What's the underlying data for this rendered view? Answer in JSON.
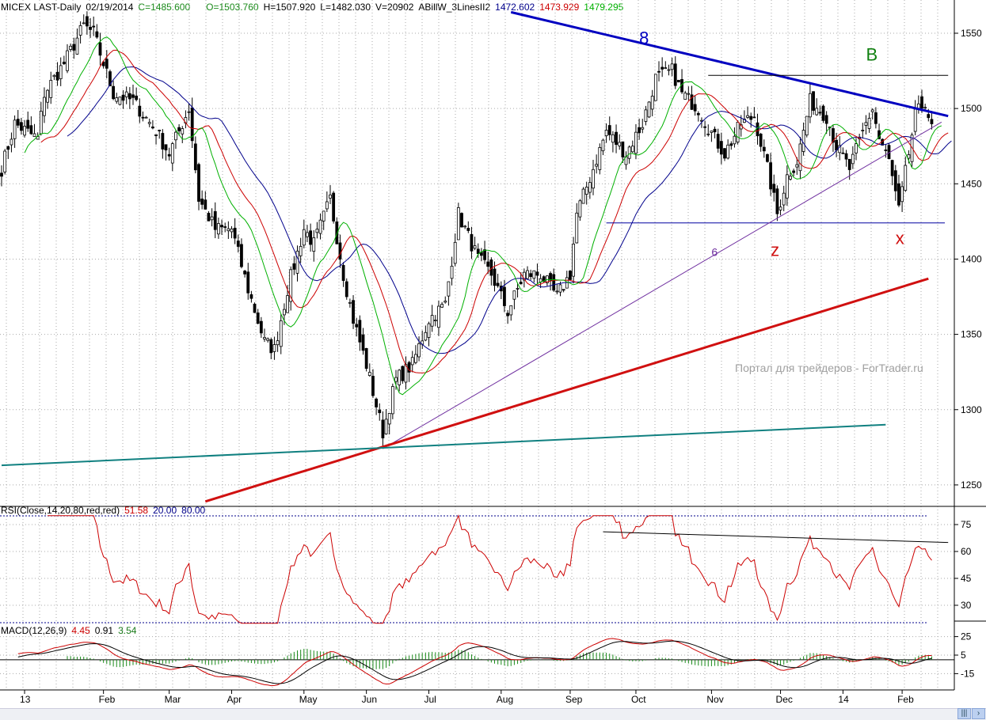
{
  "header": {
    "symbol": "MICEX LAST-Daily",
    "date": "02/19/2014",
    "close": "C=1485.600",
    "open": "O=1503.760",
    "high": "H=1507.920",
    "low": "L=1482.030",
    "volume": "V=20902",
    "indicator": "ABillW_3LinesII2",
    "jaw": "1472.602",
    "teeth": "1473.929",
    "lips": "1479.295"
  },
  "rsi_header": {
    "label": "RSI(Close,14,20,80,red,red)",
    "value": "51.58",
    "low": "20.00",
    "high": "80.00"
  },
  "macd_header": {
    "label": "MACD(12,26,9)",
    "macd": "4.45",
    "signal": "0.91",
    "hist": "3.54"
  },
  "watermark": "Портал для трейдеров - ForTrader.ru",
  "colors": {
    "jaw": "#00008b",
    "teeth": "#cc0000",
    "lips": "#00b000",
    "rsi": "#cc0000",
    "grid": "#999999"
  },
  "chart_data": {
    "type": "candlestick",
    "title": "MICEX LAST-Daily",
    "ylim": [
      1230,
      1570
    ],
    "y_ticks": [
      1250,
      1300,
      1350,
      1400,
      1450,
      1500,
      1550
    ],
    "x_ticks": [
      {
        "label": "13",
        "bar": 7
      },
      {
        "label": "Feb",
        "bar": 31
      },
      {
        "label": "Mar",
        "bar": 51
      },
      {
        "label": "Apr",
        "bar": 70
      },
      {
        "label": "May",
        "bar": 92
      },
      {
        "label": "Jun",
        "bar": 111
      },
      {
        "label": "Jul",
        "bar": 130
      },
      {
        "label": "Aug",
        "bar": 152
      },
      {
        "label": "Sep",
        "bar": 173
      },
      {
        "label": "Oct",
        "bar": 193
      },
      {
        "label": "Nov",
        "bar": 216
      },
      {
        "label": "Dec",
        "bar": 237
      },
      {
        "label": "14",
        "bar": 256
      },
      {
        "label": "Feb",
        "bar": 274
      }
    ],
    "bars": 284,
    "close_keypoints": [
      [
        0,
        1460
      ],
      [
        4,
        1490
      ],
      [
        11,
        1480
      ],
      [
        13,
        1510
      ],
      [
        19,
        1530
      ],
      [
        25,
        1555
      ],
      [
        28,
        1550
      ],
      [
        34,
        1510
      ],
      [
        40,
        1505
      ],
      [
        47,
        1485
      ],
      [
        51,
        1470
      ],
      [
        57,
        1500
      ],
      [
        60,
        1440
      ],
      [
        65,
        1420
      ],
      [
        70,
        1420
      ],
      [
        75,
        1380
      ],
      [
        80,
        1345
      ],
      [
        83,
        1340
      ],
      [
        87,
        1380
      ],
      [
        92,
        1420
      ],
      [
        95,
        1410
      ],
      [
        100,
        1440
      ],
      [
        104,
        1390
      ],
      [
        107,
        1360
      ],
      [
        111,
        1330
      ],
      [
        116,
        1285
      ],
      [
        120,
        1320
      ],
      [
        125,
        1330
      ],
      [
        130,
        1360
      ],
      [
        135,
        1370
      ],
      [
        139,
        1430
      ],
      [
        145,
        1400
      ],
      [
        149,
        1390
      ],
      [
        154,
        1365
      ],
      [
        159,
        1390
      ],
      [
        164,
        1390
      ],
      [
        169,
        1375
      ],
      [
        173,
        1390
      ],
      [
        175,
        1430
      ],
      [
        180,
        1460
      ],
      [
        184,
        1485
      ],
      [
        190,
        1470
      ],
      [
        195,
        1490
      ],
      [
        199,
        1520
      ],
      [
        204,
        1525
      ],
      [
        207,
        1510
      ],
      [
        212,
        1500
      ],
      [
        217,
        1480
      ],
      [
        220,
        1470
      ],
      [
        225,
        1490
      ],
      [
        229,
        1495
      ],
      [
        233,
        1460
      ],
      [
        236,
        1430
      ],
      [
        239,
        1455
      ],
      [
        242,
        1465
      ],
      [
        246,
        1505
      ],
      [
        251,
        1495
      ],
      [
        254,
        1475
      ],
      [
        258,
        1460
      ],
      [
        263,
        1490
      ],
      [
        265,
        1500
      ],
      [
        267,
        1480
      ],
      [
        270,
        1465
      ],
      [
        273,
        1432
      ],
      [
        276,
        1470
      ],
      [
        278,
        1495
      ],
      [
        281,
        1505
      ],
      [
        283,
        1486
      ]
    ],
    "alligator": {
      "jaw_period": 13,
      "jaw_shift": 8,
      "teeth_period": 8,
      "teeth_shift": 5,
      "lips_period": 5,
      "lips_shift": 3
    },
    "trendlines": [
      {
        "name": "resistance-line-8",
        "from": [
          155,
          1564
        ],
        "to": [
          288,
          1495
        ],
        "color": "#0000c0",
        "width": 3
      },
      {
        "name": "level-b-line",
        "from": [
          215,
          1522
        ],
        "to": [
          288,
          1522
        ],
        "color": "#000000",
        "width": 1
      },
      {
        "name": "support-level-line",
        "from": [
          184,
          1424
        ],
        "to": [
          287,
          1424
        ],
        "color": "#0000a0",
        "width": 1
      },
      {
        "name": "uptrend-line-6",
        "from": [
          116,
          1274
        ],
        "to": [
          286,
          1491
        ],
        "color": "#7030a0",
        "width": 1
      },
      {
        "name": "red-uptrend-line",
        "from": [
          62,
          1239
        ],
        "to": [
          282,
          1387
        ],
        "color": "#d01010",
        "width": 3
      },
      {
        "name": "teal-support-line",
        "from": [
          0,
          1263
        ],
        "to": [
          269,
          1290
        ],
        "color": "#108080",
        "width": 2
      }
    ],
    "annotations": [
      {
        "text": "8",
        "bar": 194,
        "price": 1543,
        "color": "#0000c0"
      },
      {
        "text": "B",
        "bar": 263,
        "price": 1532,
        "color": "#108010"
      },
      {
        "text": "z",
        "bar": 234,
        "price": 1402,
        "color": "#d01010"
      },
      {
        "text": "x",
        "bar": 272,
        "price": 1410,
        "color": "#d01010"
      },
      {
        "text": "6",
        "bar": 216,
        "price": 1402,
        "color": "#7030a0"
      }
    ],
    "rsi": {
      "period": 14,
      "levels": [
        20,
        80
      ],
      "y_ticks": [
        75,
        60,
        45,
        30
      ],
      "trendline": {
        "from": [
          183,
          71
        ],
        "to": [
          288,
          65
        ]
      }
    },
    "macd": {
      "fast": 12,
      "slow": 26,
      "signal": 9,
      "y_ticks": [
        25,
        5,
        -15
      ],
      "zero_line": 0
    }
  }
}
